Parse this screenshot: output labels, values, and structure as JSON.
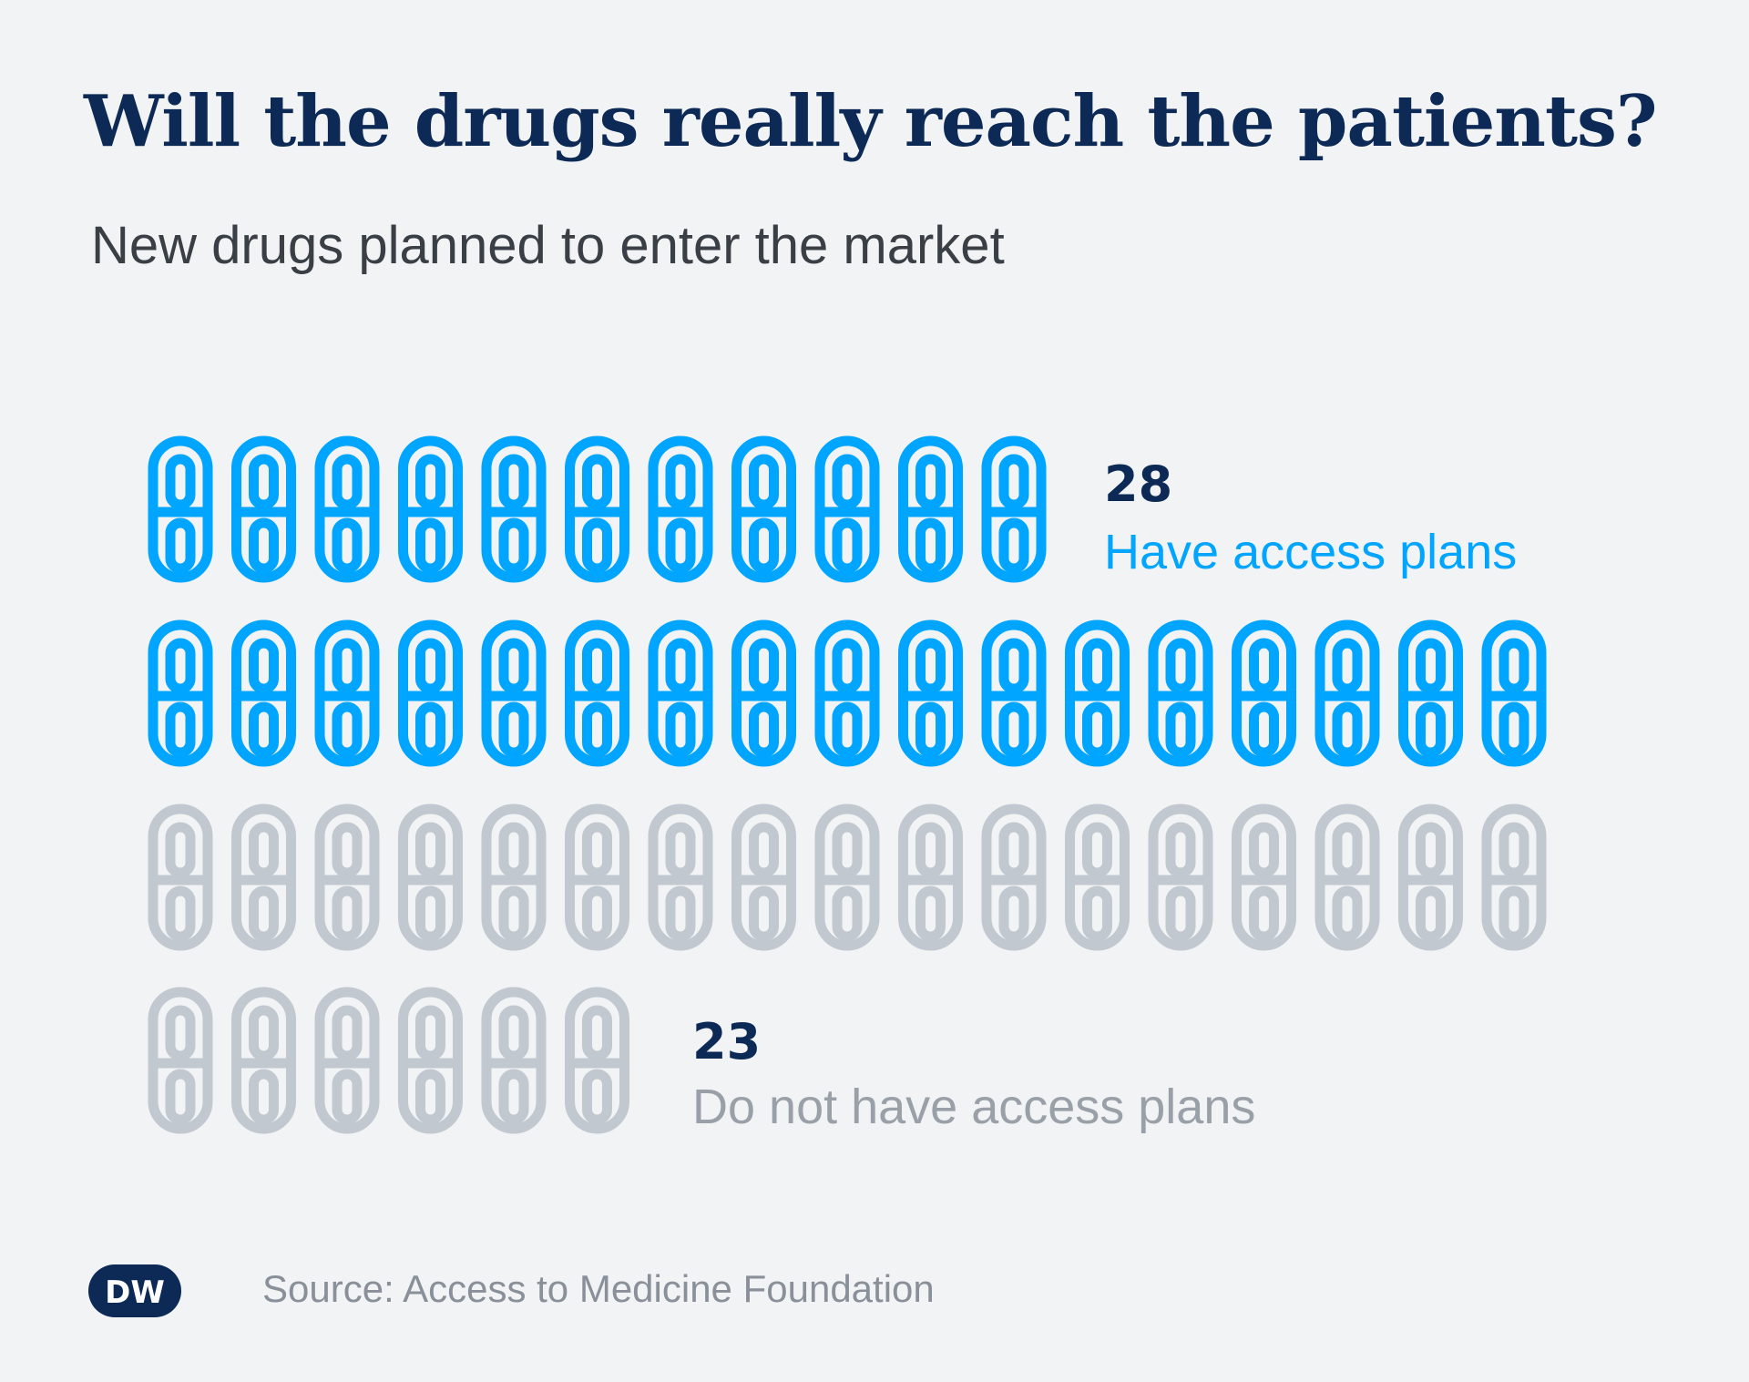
{
  "title": "Will the drugs really reach the patients?",
  "subtitle": "New drugs planned to enter the market",
  "source": "Source: Access to Medicine Foundation",
  "logo_text": "DW",
  "colors": {
    "have_plans": "#00a5ff",
    "no_plans": "#c2c8cf",
    "count_text": "#0c2a55",
    "background": "#f1f3f5"
  },
  "icon": "pill-capsule-icon",
  "chart_data": {
    "type": "pictogram",
    "icons_per_row": 17,
    "series": [
      {
        "name": "Have access plans",
        "value": 28,
        "count_label": "28",
        "color": "#00a5ff"
      },
      {
        "name": "Do not have access plans",
        "value": 23,
        "count_label": "23",
        "color": "#c2c8cf"
      }
    ]
  }
}
